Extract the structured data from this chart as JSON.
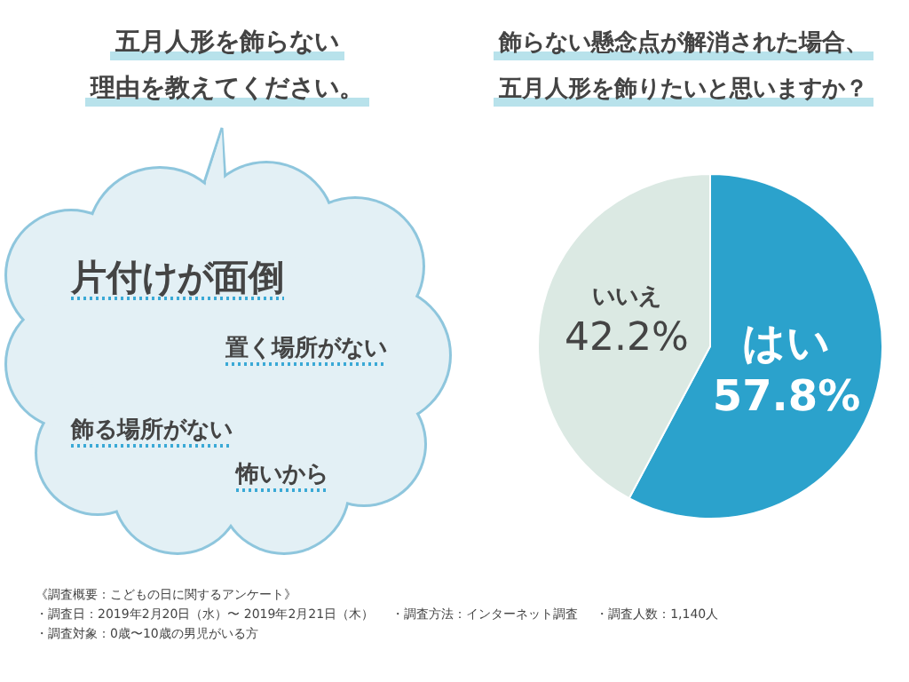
{
  "chart_data": [
    {
      "type": "other",
      "title": "五月人形を飾らない",
      "subtitle": "理由を教えてください。",
      "annotations": [
        "片付けが面倒",
        "置く場所がない",
        "飾る場所がない",
        "怖いから"
      ]
    },
    {
      "type": "pie",
      "title": "飾らない懸念点が解消された場合、",
      "subtitle": "五月人形を飾りたいと思いますか？",
      "categories": [
        "はい",
        "いいえ"
      ],
      "values": [
        57.8,
        42.2
      ],
      "colors": [
        "#2ba2cc",
        "#dbe9e3"
      ],
      "value_labels": [
        "57.8%",
        "42.2%"
      ],
      "annotations": [
        "《調査概要：こどもの日に関するアンケート》",
        "・調査日：2019年2月20日（水）〜 2019年2月21日（木）",
        "・調査方法：インターネット調査",
        "・調査人数：1,140人",
        "・調査対象：0歳〜10歳の男児がいる方"
      ]
    }
  ]
}
